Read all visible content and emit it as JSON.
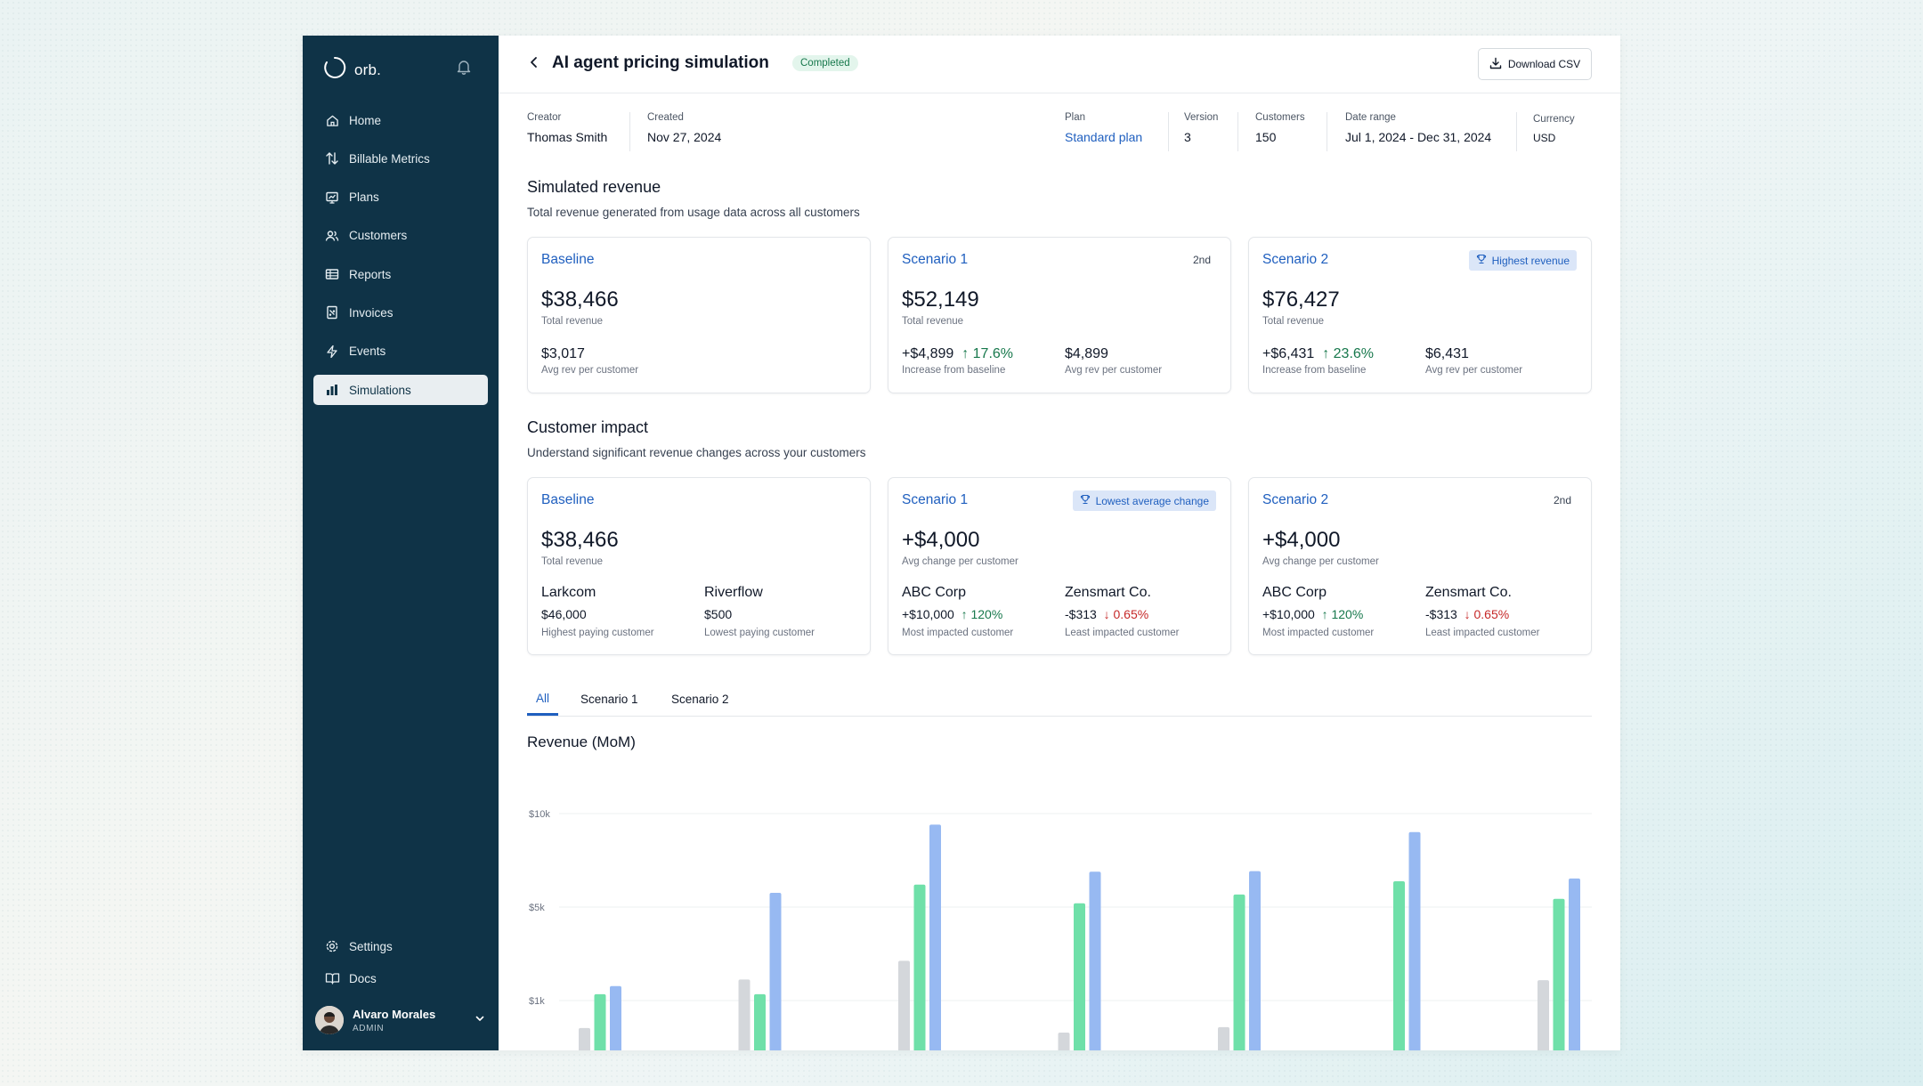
{
  "app": {
    "brand": "orb."
  },
  "sidebar": {
    "items": [
      {
        "label": "Home",
        "icon": "home-icon"
      },
      {
        "label": "Billable Metrics",
        "icon": "arrows-up-down-icon"
      },
      {
        "label": "Plans",
        "icon": "plans-icon"
      },
      {
        "label": "Customers",
        "icon": "users-icon"
      },
      {
        "label": "Reports",
        "icon": "reports-icon"
      },
      {
        "label": "Invoices",
        "icon": "invoice-icon"
      },
      {
        "label": "Events",
        "icon": "lightning-icon"
      },
      {
        "label": "Simulations",
        "icon": "bar-chart-icon",
        "active": true
      }
    ],
    "bottom": [
      {
        "label": "Settings",
        "icon": "gear-icon"
      },
      {
        "label": "Docs",
        "icon": "book-icon"
      }
    ],
    "user": {
      "name": "Alvaro Morales",
      "role": "ADMIN"
    }
  },
  "header": {
    "title": "AI agent pricing simulation",
    "status": "Completed",
    "download_label": "Download CSV"
  },
  "meta": {
    "creator": {
      "label": "Creator",
      "value": "Thomas Smith"
    },
    "created": {
      "label": "Created",
      "value": "Nov 27, 2024"
    },
    "plan": {
      "label": "Plan",
      "value": "Standard plan"
    },
    "version": {
      "label": "Version",
      "value": "3"
    },
    "customers": {
      "label": "Customers",
      "value": "150"
    },
    "date_range": {
      "label": "Date range",
      "value": "Jul 1, 2024 - Dec 31, 2024"
    },
    "currency": {
      "label": "Currency",
      "value": "USD"
    }
  },
  "simulated_revenue": {
    "title": "Simulated revenue",
    "subtitle": "Total revenue generated from usage data across all customers",
    "cards": [
      {
        "title": "Baseline",
        "value": "$38,466",
        "value_label": "Total revenue",
        "stat1": "$3,017",
        "stat1_label": "Avg rev per customer"
      },
      {
        "title": "Scenario 1",
        "rank": "2nd",
        "value": "$52,149",
        "value_label": "Total revenue",
        "stat1": "+$4,899",
        "stat1_change": "17.6%",
        "stat1_label": "Increase from baseline",
        "stat2": "$4,899",
        "stat2_label": "Avg rev per customer"
      },
      {
        "title": "Scenario 2",
        "tag": "Highest revenue",
        "value": "$76,427",
        "value_label": "Total revenue",
        "stat1": "+$6,431",
        "stat1_change": "23.6%",
        "stat1_label": "Increase from baseline",
        "stat2": "$6,431",
        "stat2_label": "Avg rev per customer"
      }
    ]
  },
  "customer_impact": {
    "title": "Customer impact",
    "subtitle": "Understand significant revenue changes across your customers",
    "cards": [
      {
        "title": "Baseline",
        "value": "$38,466",
        "value_label": "Total revenue",
        "c1_name": "Larkcom",
        "c1_value": "$46,000",
        "c1_label": "Highest paying customer",
        "c2_name": "Riverflow",
        "c2_value": "$500",
        "c2_label": "Lowest paying customer"
      },
      {
        "title": "Scenario 1",
        "tag": "Lowest average change",
        "value": "+$4,000",
        "value_label": "Avg change per customer",
        "c1_name": "ABC Corp",
        "c1_value": "+$10,000",
        "c1_change": "120%",
        "c1_label": "Most impacted customer",
        "c2_name": "Zensmart Co.",
        "c2_value": "-$313",
        "c2_change": "0.65%",
        "c2_label": "Least impacted customer"
      },
      {
        "title": "Scenario 2",
        "rank": "2nd",
        "value": "+$4,000",
        "value_label": "Avg change per customer",
        "c1_name": "ABC Corp",
        "c1_value": "+$10,000",
        "c1_change": "120%",
        "c1_label": "Most impacted customer",
        "c2_name": "Zensmart Co.",
        "c2_value": "-$313",
        "c2_change": "0.65%",
        "c2_label": "Least impacted customer"
      }
    ]
  },
  "tabs": [
    {
      "label": "All",
      "active": true
    },
    {
      "label": "Scenario 1"
    },
    {
      "label": "Scenario 2"
    }
  ],
  "chart_data": {
    "type": "bar",
    "title": "Revenue (MoM)",
    "y_ticks": [
      "$10k",
      "$5k",
      "$1k"
    ],
    "y_tick_values": [
      10000,
      5000,
      1000
    ],
    "groups": 7,
    "series": [
      {
        "color": "#d4d7db",
        "values": [
          700,
          1900,
          2700,
          650,
          710,
          440,
          1870
        ]
      },
      {
        "color": "#6fe0a9",
        "values": [
          1270,
          1270,
          6200,
          5200,
          5670,
          6380,
          5440
        ]
      },
      {
        "color": "#97b9f2",
        "values": [
          1620,
          5760,
          9410,
          6890,
          6920,
          9010,
          6530
        ]
      }
    ],
    "colors": {
      "baseline": "#d4d7db",
      "scenario1": "#6fe0a9",
      "scenario2": "#97b9f2"
    },
    "grid": true
  }
}
